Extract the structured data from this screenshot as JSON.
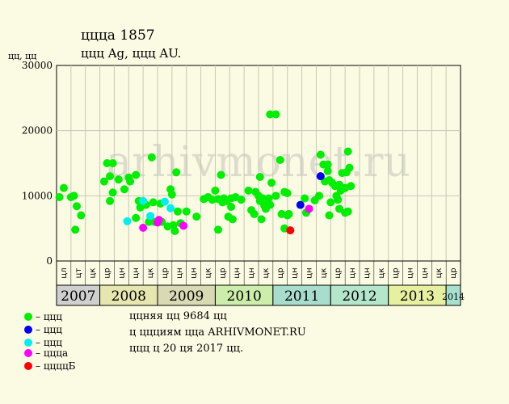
{
  "header": {
    "title": "ццца 1857",
    "subtitle": "ццц Ag, ццц AU.",
    "ylabel": "цц, цц"
  },
  "watermark": "arhivmonet.ru",
  "legend": [
    {
      "label": "– ццц",
      "color": "#00ee00"
    },
    {
      "label": "– ццц",
      "color": "#0000ee"
    },
    {
      "label": "– ццц",
      "color": "#00eeee"
    },
    {
      "label": "– ццца",
      "color": "#ff00ff"
    },
    {
      "label": "– ццццБ",
      "color": "#ff0000"
    }
  ],
  "notes": [
    "ццняя цц 9684 цц",
    "ц ццциям цца ARHIVMONET.RU",
    "ццц ц 20 ця 2017 цц."
  ],
  "chart_data": {
    "type": "scatter",
    "ylim": [
      0,
      30000
    ],
    "yticks": [
      0,
      10000,
      20000,
      30000
    ],
    "grid": true,
    "months": [
      "цл",
      "цт",
      "цк",
      "цр",
      "цн",
      "цн",
      "цк",
      "цр",
      "цн",
      "цн",
      "цк",
      "цр",
      "цн",
      "цн",
      "цк",
      "цр",
      "цн",
      "цн",
      "цк",
      "цр",
      "цн",
      "цн",
      "цк",
      "цр",
      "цн",
      "цн",
      "цк",
      "цр"
    ],
    "years": [
      {
        "label": "2007",
        "color": "#cfcfcf",
        "quarters": 3
      },
      {
        "label": "2008",
        "color": "#e6e6b0",
        "quarters": 4
      },
      {
        "label": "2009",
        "color": "#d9d9b4",
        "quarters": 4
      },
      {
        "label": "2010",
        "color": "#cceeaa",
        "quarters": 4
      },
      {
        "label": "2011",
        "color": "#a8dccc",
        "quarters": 4
      },
      {
        "label": "2012",
        "color": "#b4e6cc",
        "quarters": 4
      },
      {
        "label": "2013",
        "color": "#e6f0a0",
        "quarters": 4
      },
      {
        "label": "2014",
        "color": "#a8e0d0",
        "quarters": 1
      }
    ],
    "series": [
      {
        "color": "#00ee00",
        "points": [
          [
            0.2,
            9800
          ],
          [
            0.5,
            11200
          ],
          [
            1.0,
            9800
          ],
          [
            1.2,
            10000
          ],
          [
            1.3,
            4800
          ],
          [
            1.4,
            8400
          ],
          [
            1.7,
            7000
          ],
          [
            3.3,
            12200
          ],
          [
            3.5,
            15000
          ],
          [
            3.7,
            13000
          ],
          [
            3.7,
            9200
          ],
          [
            3.9,
            15000
          ],
          [
            3.9,
            10500
          ],
          [
            4.3,
            12500
          ],
          [
            4.7,
            11000
          ],
          [
            5.0,
            12800
          ],
          [
            5.1,
            12200
          ],
          [
            5.5,
            13200
          ],
          [
            5.5,
            6600
          ],
          [
            5.7,
            9200
          ],
          [
            5.8,
            8200
          ],
          [
            6.2,
            8600
          ],
          [
            6.4,
            6000
          ],
          [
            6.6,
            15900
          ],
          [
            6.7,
            9000
          ],
          [
            6.8,
            6000
          ],
          [
            7.2,
            8800
          ],
          [
            7.3,
            6000
          ],
          [
            7.7,
            5300
          ],
          [
            7.9,
            11000
          ],
          [
            8.0,
            10200
          ],
          [
            8.1,
            5500
          ],
          [
            8.2,
            4600
          ],
          [
            8.3,
            13600
          ],
          [
            8.4,
            7600
          ],
          [
            8.6,
            5800
          ],
          [
            9.0,
            7600
          ],
          [
            9.7,
            6800
          ],
          [
            10.2,
            9500
          ],
          [
            10.5,
            9800
          ],
          [
            10.8,
            9400
          ],
          [
            11.0,
            10800
          ],
          [
            11.2,
            9500
          ],
          [
            11.2,
            4800
          ],
          [
            11.4,
            13200
          ],
          [
            11.5,
            9000
          ],
          [
            11.6,
            9600
          ],
          [
            11.8,
            9200
          ],
          [
            11.9,
            6800
          ],
          [
            12.1,
            9600
          ],
          [
            12.1,
            8300
          ],
          [
            12.2,
            6400
          ],
          [
            12.4,
            9800
          ],
          [
            12.8,
            9400
          ],
          [
            13.3,
            10800
          ],
          [
            13.5,
            7800
          ],
          [
            13.7,
            7200
          ],
          [
            13.8,
            10600
          ],
          [
            14.0,
            10000
          ],
          [
            14.1,
            9200
          ],
          [
            14.1,
            12900
          ],
          [
            14.2,
            6400
          ],
          [
            14.3,
            9600
          ],
          [
            14.4,
            8500
          ],
          [
            14.5,
            8000
          ],
          [
            14.6,
            9200
          ],
          [
            14.7,
            9600
          ],
          [
            14.8,
            8600
          ],
          [
            14.8,
            22500
          ],
          [
            14.9,
            12000
          ],
          [
            15.2,
            22500
          ],
          [
            15.2,
            10000
          ],
          [
            15.5,
            15500
          ],
          [
            15.6,
            7200
          ],
          [
            15.8,
            10600
          ],
          [
            15.8,
            5000
          ],
          [
            16.0,
            10400
          ],
          [
            16.0,
            7000
          ],
          [
            16.1,
            7200
          ],
          [
            17.2,
            9600
          ],
          [
            17.3,
            7400
          ],
          [
            17.9,
            9300
          ],
          [
            18.2,
            10000
          ],
          [
            18.3,
            16300
          ],
          [
            18.5,
            14800
          ],
          [
            18.6,
            12200
          ],
          [
            18.8,
            14800
          ],
          [
            18.8,
            13800
          ],
          [
            18.9,
            12400
          ],
          [
            18.9,
            7000
          ],
          [
            19.0,
            9000
          ],
          [
            19.1,
            12000
          ],
          [
            19.3,
            11500
          ],
          [
            19.4,
            10000
          ],
          [
            19.5,
            9400
          ],
          [
            19.6,
            11700
          ],
          [
            19.6,
            8000
          ],
          [
            19.7,
            10800
          ],
          [
            19.8,
            13500
          ],
          [
            20.0,
            11200
          ],
          [
            20.0,
            7400
          ],
          [
            20.1,
            13600
          ],
          [
            20.2,
            16800
          ],
          [
            20.2,
            7600
          ],
          [
            20.3,
            14300
          ],
          [
            20.4,
            11500
          ]
        ]
      },
      {
        "color": "#0000ee",
        "points": [
          [
            16.9,
            8600
          ],
          [
            18.3,
            13000
          ]
        ]
      },
      {
        "color": "#00eeee",
        "points": [
          [
            4.9,
            6100
          ],
          [
            6.0,
            9200
          ],
          [
            6.5,
            6900
          ],
          [
            7.5,
            9100
          ],
          [
            7.9,
            8100
          ]
        ]
      },
      {
        "color": "#ff00ff",
        "points": [
          [
            6.0,
            5100
          ],
          [
            7.0,
            5900
          ],
          [
            7.1,
            6300
          ],
          [
            8.8,
            5400
          ],
          [
            17.5,
            8000
          ]
        ]
      },
      {
        "color": "#ff0000",
        "points": [
          [
            16.2,
            4700
          ]
        ]
      }
    ]
  }
}
